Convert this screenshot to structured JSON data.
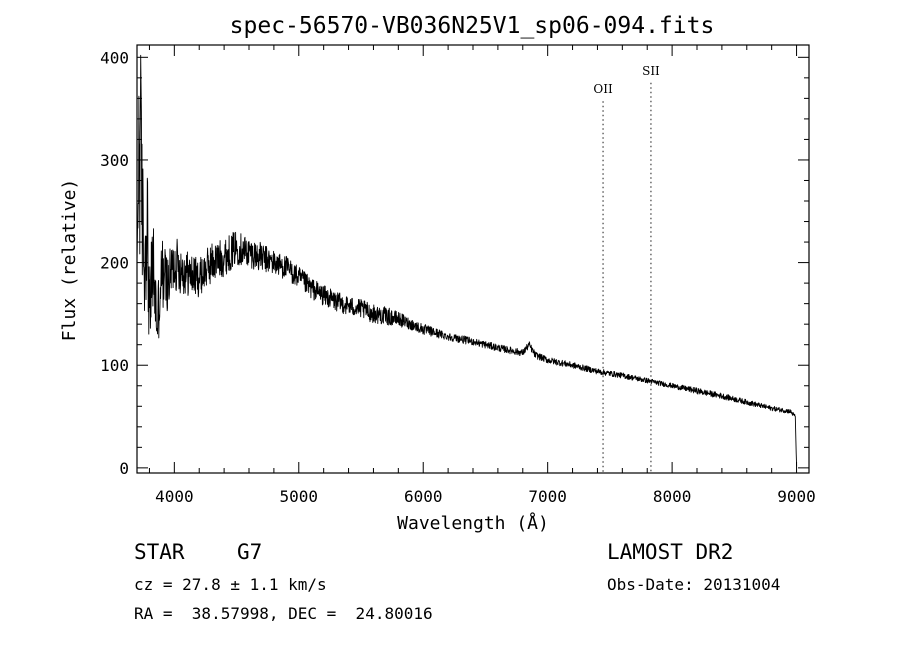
{
  "chart_data": {
    "type": "line",
    "title": "spec-56570-VB036N25V1_sp06-094.fits",
    "xlabel": "Wavelength (Å)",
    "ylabel": "Flux (relative)",
    "xlim": [
      3700,
      9100
    ],
    "ylim": [
      -5,
      412
    ],
    "x_ticks": [
      4000,
      5000,
      6000,
      7000,
      8000,
      9000
    ],
    "x_tick_labels": [
      "4000",
      "5000",
      "6000",
      "7000",
      "8000",
      "9000"
    ],
    "y_ticks": [
      0,
      100,
      200,
      300,
      400
    ],
    "y_tick_labels": [
      "0",
      "100",
      "200",
      "300",
      "400"
    ],
    "line_markers": [
      {
        "label": "OII",
        "x": 7445,
        "label_y": 365
      },
      {
        "label": "SII",
        "x": 7830,
        "label_y": 383
      }
    ],
    "series": [
      {
        "name": "spectrum",
        "x": [
          3700,
          3720,
          3740,
          3760,
          3780,
          3800,
          3830,
          3860,
          3900,
          3950,
          4000,
          4100,
          4200,
          4300,
          4400,
          4500,
          4600,
          4700,
          4800,
          4900,
          5000,
          5100,
          5200,
          5300,
          5400,
          5500,
          5600,
          5700,
          5800,
          5900,
          6000,
          6200,
          6400,
          6600,
          6800,
          6850,
          6900,
          7000,
          7200,
          7400,
          7600,
          7800,
          8000,
          8200,
          8400,
          8600,
          8800,
          8950,
          8990,
          9000
        ],
        "values": [
          200,
          340,
          260,
          190,
          250,
          150,
          200,
          140,
          190,
          180,
          200,
          190,
          185,
          200,
          205,
          215,
          210,
          205,
          200,
          195,
          185,
          175,
          168,
          162,
          158,
          155,
          150,
          148,
          145,
          140,
          135,
          128,
          123,
          117,
          112,
          120,
          110,
          105,
          100,
          94,
          90,
          85,
          80,
          75,
          70,
          64,
          58,
          55,
          50,
          2
        ],
        "noise": [
          0.0,
          0.42,
          0.32,
          0.25,
          0.3,
          0.28,
          0.25,
          0.22,
          0.2,
          0.15,
          0.14,
          0.12,
          0.1,
          0.1,
          0.09,
          0.08,
          0.07,
          0.07,
          0.06,
          0.06,
          0.06,
          0.06,
          0.06,
          0.06,
          0.06,
          0.06,
          0.06,
          0.06,
          0.05,
          0.04,
          0.04,
          0.03,
          0.03,
          0.03,
          0.03,
          0.03,
          0.03,
          0.03,
          0.03,
          0.03,
          0.03,
          0.03,
          0.03,
          0.04,
          0.04,
          0.04,
          0.04,
          0.04,
          0.04,
          0.0
        ]
      }
    ]
  },
  "info": {
    "object_class": "STAR",
    "subclass": "G7",
    "survey": "LAMOST DR2",
    "redshift": "cz = 27.8 ± 1.1 km/s",
    "obs_date": "Obs-Date: 20131004",
    "coordinates": "RA =  38.57998, DEC =  24.80016"
  }
}
